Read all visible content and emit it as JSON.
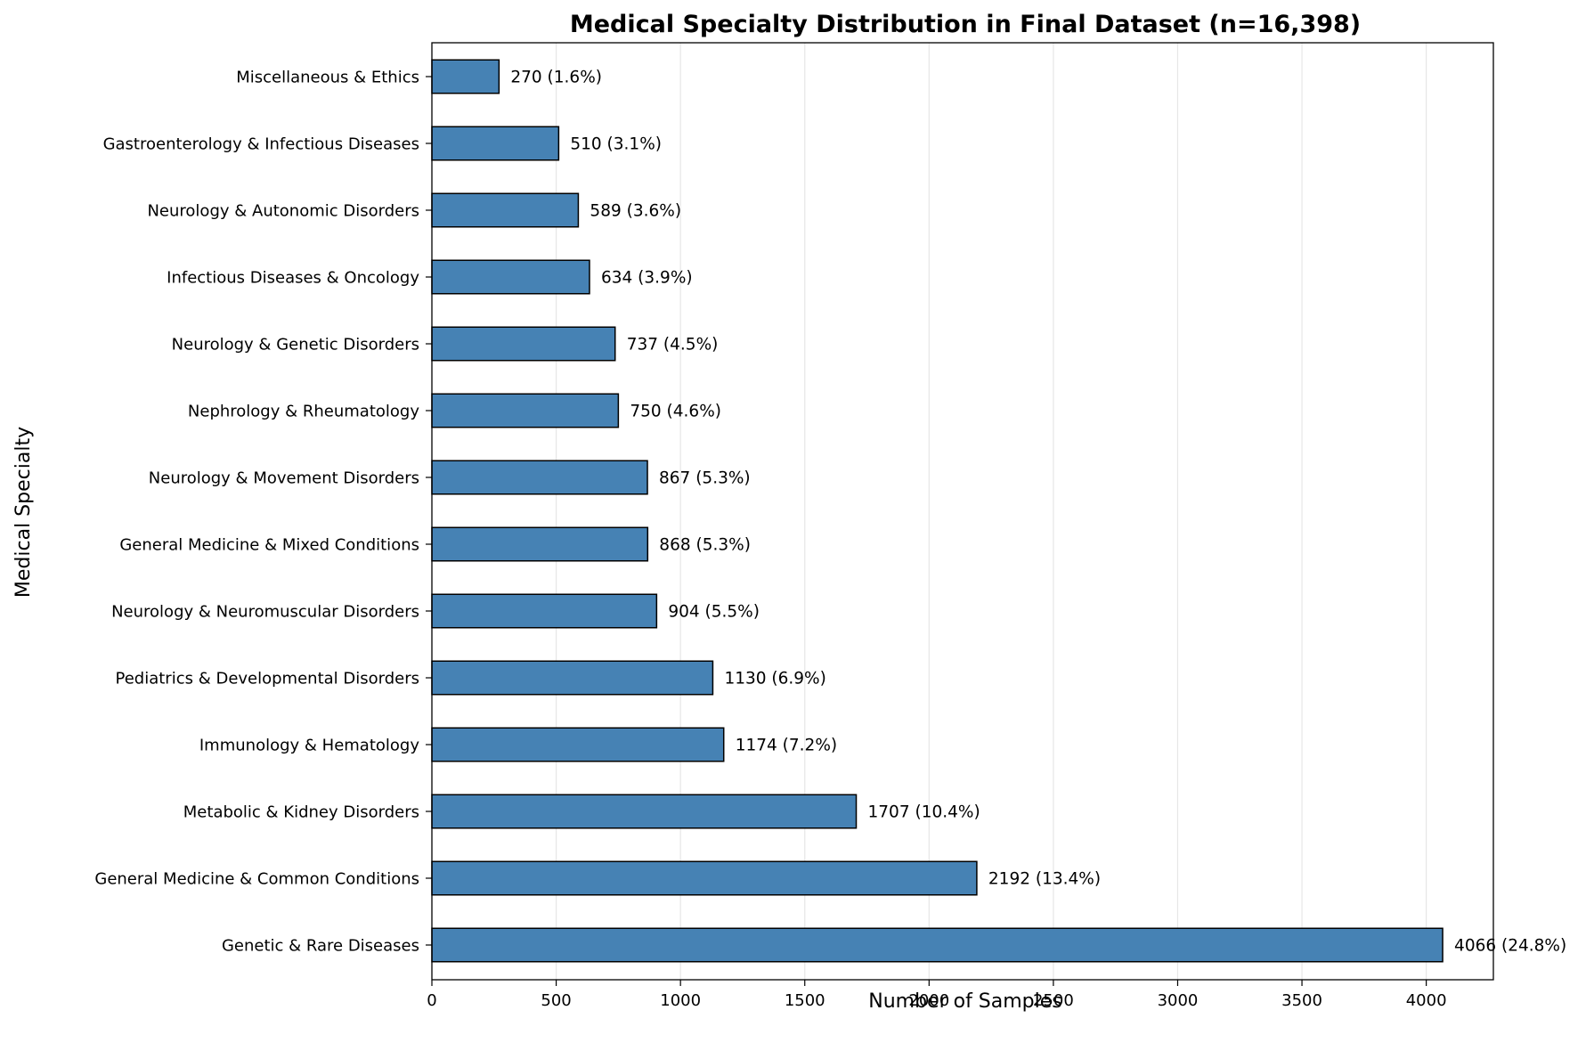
{
  "chart_data": {
    "type": "bar",
    "orientation": "horizontal",
    "title": "Medical Specialty Distribution in Final Dataset (n=16,398)",
    "xlabel": "Number of Samples",
    "ylabel": "Medical Specialty",
    "xlim": [
      0,
      4270
    ],
    "xticks": [
      0,
      500,
      1000,
      1500,
      2000,
      2500,
      3000,
      3500,
      4000
    ],
    "grid": "vertical",
    "bar_color": "#4682b4",
    "bar_edge_color": "#000000",
    "categories": [
      "Miscellaneous & Ethics",
      "Gastroenterology & Infectious Diseases",
      "Neurology & Autonomic Disorders",
      "Infectious Diseases & Oncology",
      "Neurology & Genetic Disorders",
      "Nephrology & Rheumatology",
      "Neurology & Movement Disorders",
      "General Medicine & Mixed Conditions",
      "Neurology & Neuromuscular Disorders",
      "Pediatrics & Developmental Disorders",
      "Immunology & Hematology",
      "Metabolic & Kidney Disorders",
      "General Medicine & Common Conditions",
      "Genetic & Rare Diseases"
    ],
    "values": [
      270,
      510,
      589,
      634,
      737,
      750,
      867,
      868,
      904,
      1130,
      1174,
      1707,
      2192,
      4066
    ],
    "data_labels": [
      "270 (1.6%)",
      "510 (3.1%)",
      "589 (3.6%)",
      "634 (3.9%)",
      "737 (4.5%)",
      "750 (4.6%)",
      "867 (5.3%)",
      "868 (5.3%)",
      "904 (5.5%)",
      "1130 (6.9%)",
      "1174 (7.2%)",
      "1707 (10.4%)",
      "2192 (13.4%)",
      "4066 (24.8%)"
    ]
  }
}
